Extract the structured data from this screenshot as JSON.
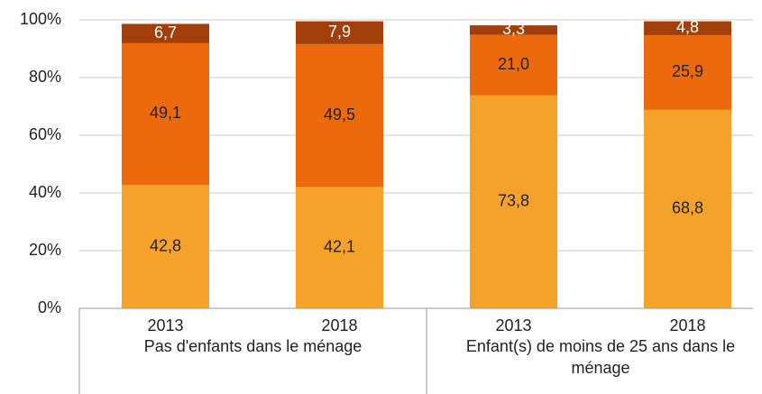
{
  "chart_data": {
    "type": "stacked_bar",
    "categories": [
      "2013",
      "2018",
      "2013",
      "2018"
    ],
    "groups": [
      {
        "label": "Pas d'enfants dans le ménage",
        "size": 2
      },
      {
        "label": "Enfant(s) de moins de 25 ans dans le ménage",
        "size": 2
      }
    ],
    "series": [
      {
        "color": "#f5a22b",
        "values": [
          42.8,
          42.1,
          73.8,
          68.8
        ],
        "value_labels": [
          "42,8",
          "42,1",
          "73,8",
          "68,8"
        ]
      },
      {
        "color": "#ec6a0c",
        "values": [
          49.1,
          49.5,
          21.0,
          25.9
        ],
        "value_labels": [
          "49,1",
          "49,5",
          "21,0",
          "25,9"
        ]
      },
      {
        "color": "#a33f0b",
        "values": [
          6.7,
          7.9,
          3.3,
          4.8
        ],
        "value_labels": [
          "6,7",
          "7,9",
          "3,3",
          "4,8"
        ]
      }
    ],
    "ylim": [
      0,
      100
    ],
    "yticks": [
      {
        "value": 0,
        "label": "0%"
      },
      {
        "value": 20,
        "label": "20%"
      },
      {
        "value": 40,
        "label": "40%"
      },
      {
        "value": 60,
        "label": "60%"
      },
      {
        "value": 80,
        "label": "80%"
      },
      {
        "value": 100,
        "label": "100%"
      }
    ],
    "grid": true
  }
}
